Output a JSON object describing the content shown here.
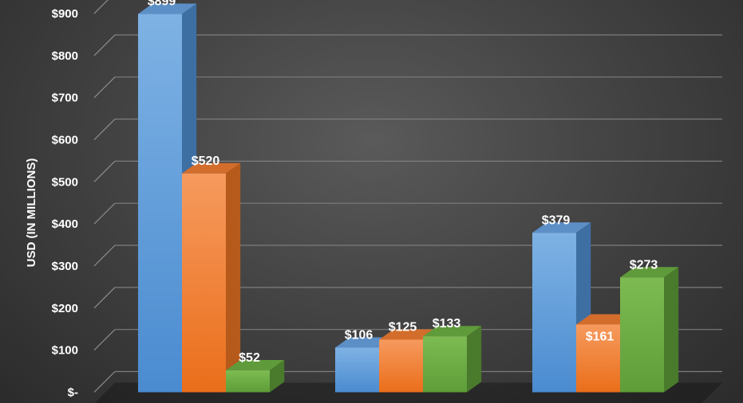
{
  "chart_data": {
    "type": "bar",
    "ylabel": "USD (IN MILLIONS)",
    "ylim": [
      0,
      900
    ],
    "ytick_step": 100,
    "ytick_labels": [
      "$-",
      "$100",
      "$200",
      "$300",
      "$400",
      "$500",
      "$600",
      "$700",
      "$800",
      "$900"
    ],
    "grid": true,
    "legend": "none",
    "groups": 3,
    "series": [
      {
        "color": "#5b9bd5",
        "values": [
          899,
          106,
          379
        ],
        "labels": [
          "$899",
          "$106",
          "$379"
        ]
      },
      {
        "color": "#ed7d31",
        "values": [
          520,
          125,
          161
        ],
        "labels": [
          "$520",
          "$125",
          "$161"
        ]
      },
      {
        "color": "#70ad47",
        "values": [
          52,
          133,
          273
        ],
        "labels": [
          "$52",
          "$133",
          "$273"
        ]
      }
    ]
  }
}
